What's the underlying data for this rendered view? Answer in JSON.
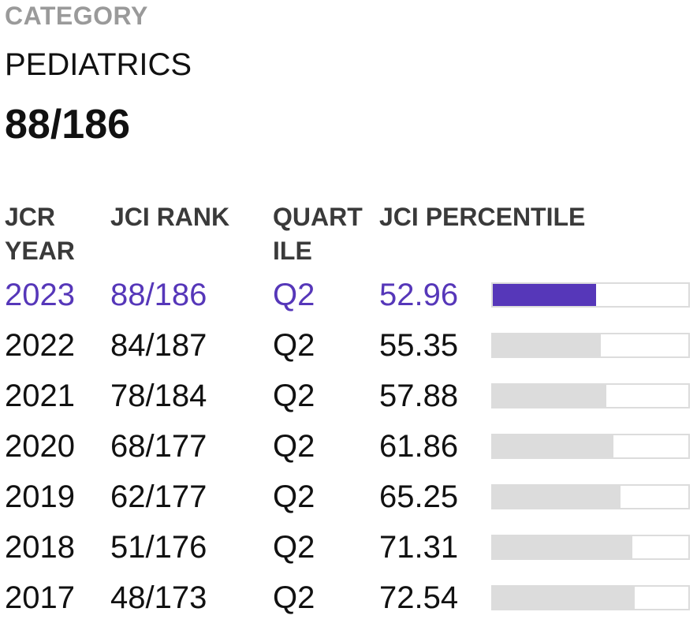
{
  "category": {
    "label": "CATEGORY",
    "name": "PEDIATRICS",
    "rank": "88/186"
  },
  "table": {
    "headers": {
      "year_line1": "JCR",
      "year_line2": "YEAR",
      "rank": "JCI RANK",
      "quartile_line1": "QUART",
      "quartile_line2": "ILE",
      "percentile": "JCI PERCENTILE"
    },
    "rows": [
      {
        "year": "2023",
        "rank": "88/186",
        "quartile": "Q2",
        "percentile": "52.96",
        "current": true
      },
      {
        "year": "2022",
        "rank": "84/187",
        "quartile": "Q2",
        "percentile": "55.35",
        "current": false
      },
      {
        "year": "2021",
        "rank": "78/184",
        "quartile": "Q2",
        "percentile": "57.88",
        "current": false
      },
      {
        "year": "2020",
        "rank": "68/177",
        "quartile": "Q2",
        "percentile": "61.86",
        "current": false
      },
      {
        "year": "2019",
        "rank": "62/177",
        "quartile": "Q2",
        "percentile": "65.25",
        "current": false
      },
      {
        "year": "2018",
        "rank": "51/176",
        "quartile": "Q2",
        "percentile": "71.31",
        "current": false
      },
      {
        "year": "2017",
        "rank": "48/173",
        "quartile": "Q2",
        "percentile": "72.54",
        "current": false
      }
    ]
  },
  "colors": {
    "accent": "#5637b9",
    "bar_fill": "#dcdcdc",
    "label_gray": "#9a9a9a"
  }
}
